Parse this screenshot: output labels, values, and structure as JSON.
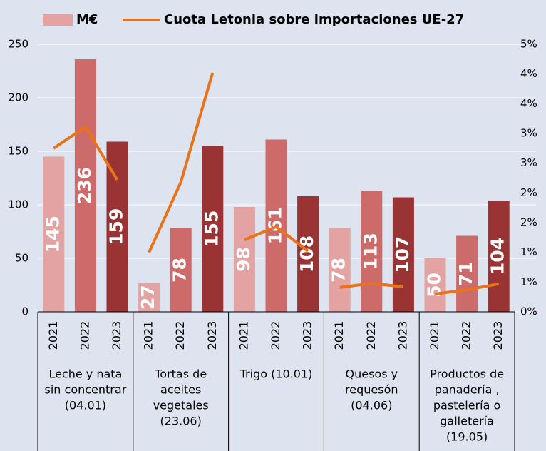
{
  "chart_data": {
    "type": "bar_line",
    "categories": [
      "2021",
      "2022",
      "2023",
      "2021",
      "2022",
      "2023",
      "2021",
      "2022",
      "2023",
      "2021",
      "2022",
      "2023",
      "2021",
      "2022",
      "2023"
    ],
    "groups": [
      [
        "Leche y nata",
        "sin concentrar",
        "(04.01)"
      ],
      [
        "Tortas de",
        "aceites",
        "vegetales",
        "(23.06)"
      ],
      [
        "Trigo (10.01)"
      ],
      [
        "Quesos y",
        "requesón",
        "(04.06)"
      ],
      [
        "Productos de",
        "panadería ,",
        "pastelería o",
        "galletería",
        "(19.05)"
      ]
    ],
    "series": [
      {
        "name": "M€",
        "colors": [
          "#e3a3a3",
          "#cd6a6a",
          "#9a3434"
        ],
        "values": [
          145,
          236,
          159,
          27,
          78,
          155,
          98,
          161,
          108,
          78,
          113,
          107,
          50,
          71,
          104
        ]
      },
      {
        "name": "Cuota Letonia sobre importaciones UE-27",
        "color": "#e8731a",
        "axis": "y2",
        "values": [
          2.75,
          3.11,
          2.22,
          1.0,
          2.18,
          4.02,
          1.21,
          1.43,
          1.02,
          0.41,
          0.48,
          0.42,
          0.3,
          0.37,
          0.47
        ]
      }
    ],
    "ylim": [
      0,
      250
    ],
    "yticks": [
      0,
      50,
      100,
      150,
      200,
      250
    ],
    "y2lim": [
      0,
      4.5
    ],
    "y2ticks": [
      {
        "value": 0,
        "label": "0%"
      },
      {
        "value": 0.5,
        "label": "1%"
      },
      {
        "value": 1,
        "label": "1%"
      },
      {
        "value": 1.5,
        "label": "2%"
      },
      {
        "value": 2,
        "label": "2%"
      },
      {
        "value": 2.5,
        "label": "3%"
      },
      {
        "value": 3,
        "label": "3%"
      },
      {
        "value": 3.5,
        "label": "4%"
      },
      {
        "value": 4,
        "label": "4%"
      },
      {
        "value": 4.5,
        "label": "5%"
      }
    ],
    "grid": true
  }
}
